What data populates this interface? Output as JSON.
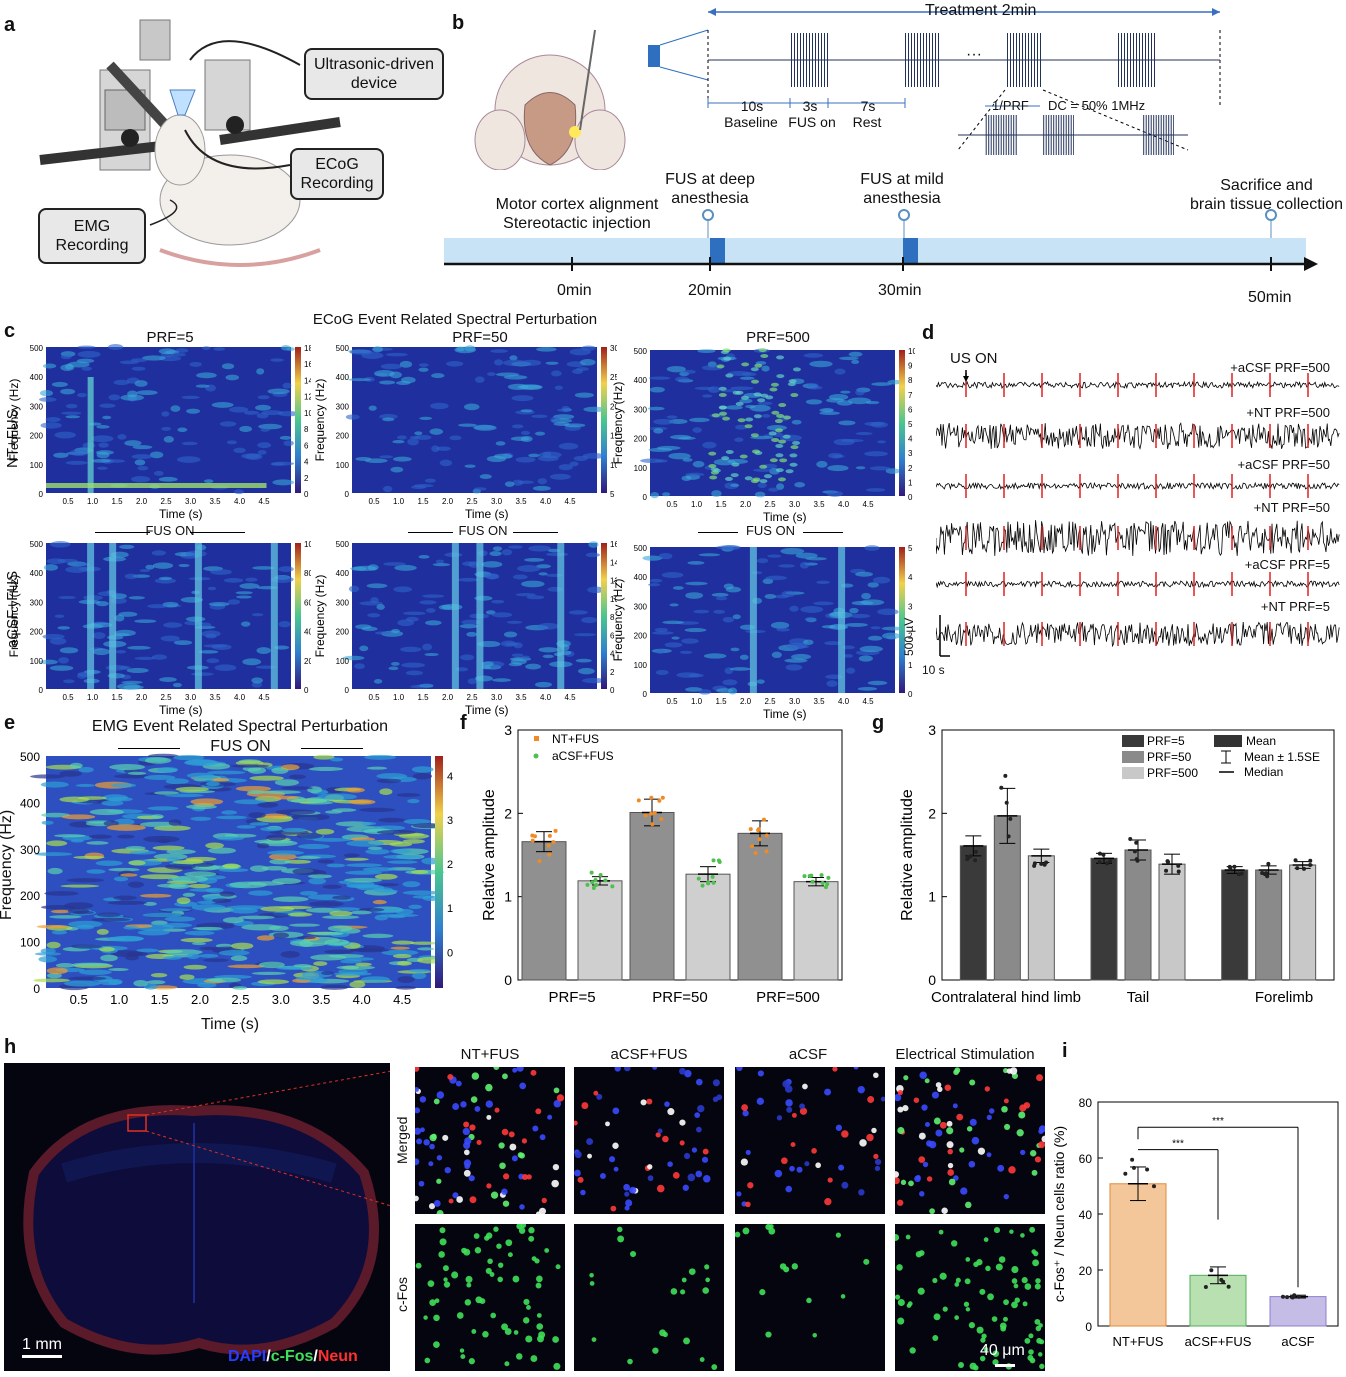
{
  "panels": {
    "a": "a",
    "b": "b",
    "c": "c",
    "d": "d",
    "e": "e",
    "f": "f",
    "g": "g",
    "h": "h",
    "i": "i"
  },
  "a": {
    "device": "Ultrasonic-driven device",
    "ecog": "ECoG Recording",
    "emg": "EMG Recording"
  },
  "b": {
    "treatment": "Treatment 2min",
    "baseline_dur": "10s",
    "baseline": "Baseline",
    "fus_dur": "3s",
    "fus_on": "FUS on",
    "rest_dur": "7s",
    "rest": "Rest",
    "prf": "1/PRF",
    "dc": "DC = 50% 1MHz",
    "dots": "···",
    "events": [
      {
        "label": "Motor cortex alignment\nStereotactic injection"
      },
      {
        "label": "FUS at deep\nanesthesia"
      },
      {
        "label": "FUS at mild\nanesthesia"
      },
      {
        "label": "Sacrifice and\nbrain tissue collection"
      }
    ],
    "times": [
      "0min",
      "20min",
      "30min",
      "50min"
    ]
  },
  "c": {
    "title": "ECoG Event Related Spectral Perturbation",
    "cols": [
      "PRF=5",
      "PRF=50",
      "PRF=500"
    ],
    "rows": [
      "NT+FUS",
      "aCSF+FUS"
    ],
    "ylabel": "Frequency (Hz)",
    "xlabel": "Time (s)",
    "fus_on": "FUS ON",
    "yticks": [
      "500",
      "400",
      "300",
      "200",
      "100",
      "0"
    ],
    "xticks": [
      "0.5",
      "1.0",
      "1.5",
      "2.0",
      "2.5",
      "3.0",
      "3.5",
      "4.0",
      "4.5"
    ],
    "colorbars": [
      [
        "18",
        "16",
        "14",
        "12",
        "10",
        "8",
        "6",
        "4",
        "2",
        "0"
      ],
      [
        "30",
        "25",
        "20",
        "15",
        "10",
        "5"
      ],
      [
        "10",
        "9",
        "8",
        "7",
        "6",
        "5",
        "4",
        "3",
        "2",
        "1",
        "0"
      ],
      [
        "100",
        "80",
        "60",
        "40",
        "20",
        "0"
      ],
      [
        "16",
        "14",
        "12",
        "10",
        "8",
        "6",
        "4",
        "2",
        "0"
      ],
      [
        "5",
        "4",
        "3",
        "2",
        "1",
        "0"
      ]
    ]
  },
  "d": {
    "us_on": "US ON",
    "traces": [
      "+aCSF PRF=500",
      "+NT PRF=500",
      "+aCSF PRF=50",
      "+NT PRF=50",
      "+aCSF PRF=5",
      "+NT PRF=5"
    ],
    "scale_v": "500 µV",
    "scale_t": "10 s"
  },
  "e": {
    "title": "EMG Event Related Spectral Perturbation",
    "fus_on": "FUS ON",
    "ylabel": "Frequency (Hz)",
    "xlabel": "Time (s)",
    "yticks": [
      "500",
      "400",
      "300",
      "200",
      "100",
      "0"
    ],
    "xticks": [
      "0.5",
      "1.0",
      "1.5",
      "2.0",
      "2.5",
      "3.0",
      "3.5",
      "4.0",
      "4.5"
    ],
    "colorbar": [
      "4",
      "3",
      "2",
      "1",
      "0"
    ]
  },
  "chart_data": [
    {
      "id": "f",
      "type": "bar",
      "categories": [
        "PRF=5",
        "PRF=50",
        "PRF=500"
      ],
      "series": [
        {
          "name": "NT+FUS",
          "values": [
            1.66,
            2.01,
            1.76
          ],
          "err": [
            0.12,
            0.16,
            0.15
          ],
          "color": "#909090"
        },
        {
          "name": "aCSF+FUS",
          "values": [
            1.19,
            1.27,
            1.18
          ],
          "err": [
            0.05,
            0.09,
            0.05
          ],
          "color": "#cfcfcf"
        }
      ],
      "points_color": {
        "NT+FUS": "#f08a24",
        "aCSF+FUS": "#4fbf4f"
      },
      "ylabel": "Relative amplitude",
      "ylim": [
        0,
        3
      ],
      "yticks": [
        "0",
        "1",
        "2",
        "3"
      ]
    },
    {
      "id": "g",
      "type": "bar",
      "categories": [
        "Contralateral hind limb",
        "Tail",
        "Forelimb"
      ],
      "series": [
        {
          "name": "PRF=5",
          "values": [
            1.61,
            1.46,
            1.32
          ],
          "err": [
            0.12,
            0.06,
            0.04
          ],
          "color": "#3a3a3a"
        },
        {
          "name": "PRF=50",
          "values": [
            1.97,
            1.56,
            1.32
          ],
          "err": [
            0.33,
            0.12,
            0.05
          ],
          "color": "#8a8a8a"
        },
        {
          "name": "PRF=500",
          "values": [
            1.49,
            1.39,
            1.38
          ],
          "err": [
            0.08,
            0.12,
            0.04
          ],
          "color": "#c8c8c8"
        }
      ],
      "legend2": [
        "Mean",
        "Mean ± 1.5SE",
        "Median"
      ],
      "ylabel": "Relative amplitude",
      "ylim": [
        0,
        3
      ],
      "yticks": [
        "0",
        "1",
        "2",
        "3"
      ]
    },
    {
      "id": "i",
      "type": "bar",
      "categories": [
        "NT+FUS",
        "aCSF+FUS",
        "aCSF"
      ],
      "values": [
        50.8,
        18.1,
        10.5
      ],
      "err": [
        6.0,
        3.0,
        0.5
      ],
      "colors": [
        "#f3c79a",
        "#b9e0b0",
        "#c5bde6"
      ],
      "edge": [
        "#e08a3c",
        "#4faf5a",
        "#8d7fcf"
      ],
      "ylabel": "c-Fos⁺ / Neun cells ratio (%)",
      "ylim": [
        0,
        80
      ],
      "yticks": [
        "0",
        "20",
        "40",
        "60",
        "80"
      ],
      "sig": [
        "***",
        "***"
      ]
    }
  ],
  "h": {
    "cols": [
      "NT+FUS",
      "aCSF+FUS",
      "aCSF",
      "Electrical Stimulation"
    ],
    "rows": [
      "Merged",
      "c-Fos"
    ],
    "scale1": "1 mm",
    "scale2": "40 μm",
    "stain": {
      "dapi": "DAPI",
      "sep1": "/",
      "cfos": "c-Fos",
      "sep2": "/",
      "neun": "Neun"
    },
    "colors": {
      "dapi": "#2a3cff",
      "cfos": "#3fe05a",
      "neun": "#ff3030"
    }
  }
}
